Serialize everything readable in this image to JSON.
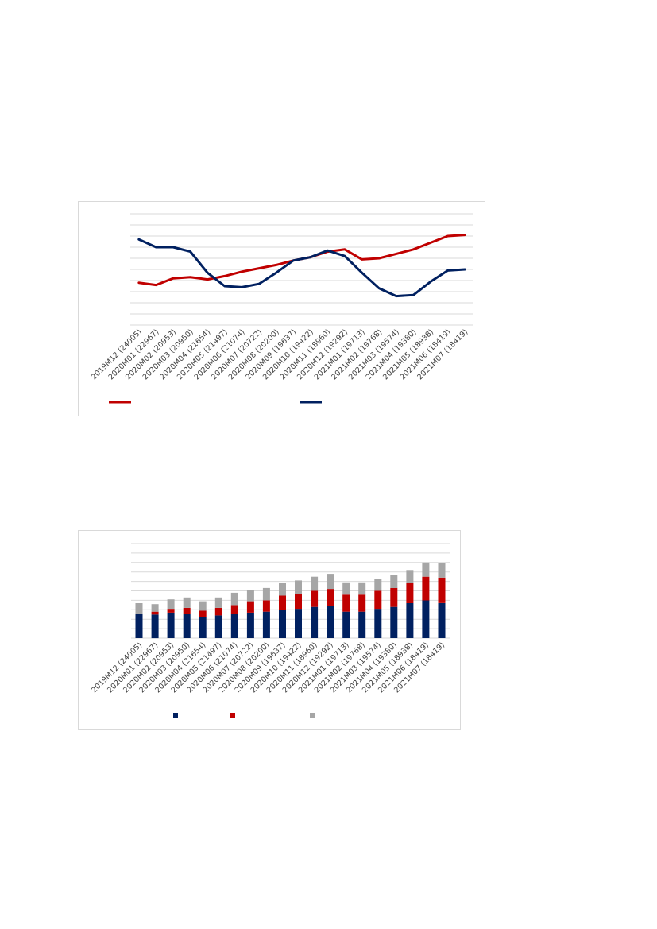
{
  "chart_data": [
    {
      "type": "line",
      "title": "",
      "xlabel": "",
      "ylabel": "",
      "grid": true,
      "legend_position": "bottom",
      "categories": [
        "2019M12 (24005)",
        "2020M01 (22967)",
        "2020M02 (20953)",
        "2020M03 (20950)",
        "2020M04 (21654)",
        "2020M05 (21497)",
        "2020M06 (21074)",
        "2020M07 (20722)",
        "2020M08 (20200)",
        "2020M09 (19637)",
        "2020M10 (19422)",
        "2020M11 (18960)",
        "2020M12 (19292)",
        "2021M01 (19713)",
        "2021M02 (19768)",
        "2021M03 (19574)",
        "2021M04 (19380)",
        "2021M05 (18938)",
        "2021M06 (18419)",
        "2021M07 (18419)"
      ],
      "ylim": [
        0,
        10
      ],
      "series": [
        {
          "color": "#c00000",
          "values": [
            3.8,
            3.6,
            4.2,
            4.3,
            4.1,
            4.4,
            4.8,
            5.1,
            5.4,
            5.8,
            6.1,
            6.6,
            6.8,
            5.9,
            6.0,
            6.4,
            6.8,
            7.4,
            8.0,
            8.1
          ]
        },
        {
          "color": "#002060",
          "values": [
            7.7,
            7.0,
            7.0,
            6.6,
            4.7,
            3.5,
            3.4,
            3.7,
            4.7,
            5.8,
            6.1,
            6.7,
            6.2,
            4.7,
            3.3,
            2.6,
            2.7,
            3.9,
            4.9,
            5.0
          ]
        }
      ]
    },
    {
      "type": "bar",
      "stacked": true,
      "title": "",
      "xlabel": "",
      "ylabel": "",
      "grid": true,
      "legend_position": "bottom",
      "categories": [
        "2019M12 (24005)",
        "2020M01 (22967)",
        "2020M02 (20953)",
        "2020M03 (20950)",
        "2020M04 (21654)",
        "2020M05 (21497)",
        "2020M06 (21074)",
        "2020M07 (20722)",
        "2020M08 (20200)",
        "2020M09 (19637)",
        "2020M10 (19422)",
        "2020M11 (18960)",
        "2020M12 (19292)",
        "2021M01 (19713)",
        "2021M02 (19768)",
        "2021M03 (19574)",
        "2021M04 (19380)",
        "2021M05 (18938)",
        "2021M06 (18419)",
        "2021M07 (18419)"
      ],
      "ylim": [
        0,
        10
      ],
      "series": [
        {
          "color": "#002060",
          "values": [
            2.6,
            2.5,
            2.7,
            2.6,
            2.2,
            2.4,
            2.6,
            2.7,
            2.8,
            3.0,
            3.1,
            3.3,
            3.4,
            2.8,
            2.8,
            3.1,
            3.3,
            3.7,
            4.0,
            3.7
          ]
        },
        {
          "color": "#c00000",
          "values": [
            0.0,
            0.3,
            0.4,
            0.6,
            0.7,
            0.8,
            0.9,
            1.2,
            1.2,
            1.5,
            1.6,
            1.7,
            1.8,
            1.8,
            1.8,
            1.9,
            2.0,
            2.1,
            2.5,
            2.7
          ]
        },
        {
          "color": "#a6a6a6",
          "values": [
            1.1,
            0.8,
            1.0,
            1.1,
            1.0,
            1.1,
            1.3,
            1.2,
            1.3,
            1.3,
            1.4,
            1.5,
            1.6,
            1.3,
            1.3,
            1.3,
            1.4,
            1.4,
            1.5,
            1.5
          ]
        }
      ]
    }
  ]
}
